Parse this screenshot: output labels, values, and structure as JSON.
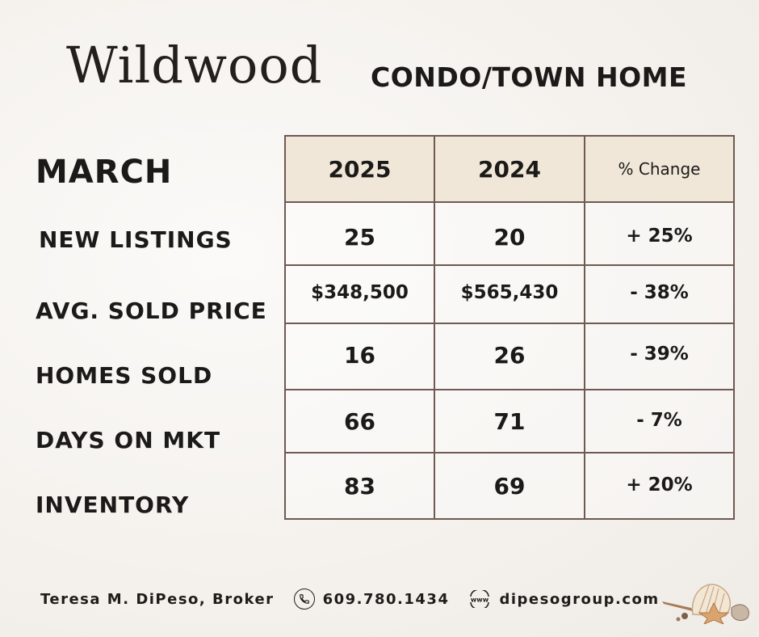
{
  "header": {
    "title": "Wildwood",
    "subtitle": "CONDO/TOWN HOME"
  },
  "month": "MARCH",
  "table": {
    "columns": [
      "2025",
      "2024",
      "% Change"
    ],
    "rows": [
      {
        "label": "NEW LISTINGS",
        "y2025": "25",
        "y2024": "20",
        "change": "+ 25%"
      },
      {
        "label": "AVG. SOLD PRICE",
        "y2025": "$348,500",
        "y2024": "$565,430",
        "change": "- 38%"
      },
      {
        "label": "HOMES SOLD",
        "y2025": "16",
        "y2024": "26",
        "change": "- 39%"
      },
      {
        "label": "DAYS ON MKT",
        "y2025": "66",
        "y2024": "71",
        "change": "- 7%"
      },
      {
        "label": "INVENTORY",
        "y2025": "83",
        "y2024": "69",
        "change": "+ 20%"
      }
    ]
  },
  "footer": {
    "agent": "Teresa M. DiPeso, Broker",
    "phone_icon": "phone-icon",
    "phone": "609.780.1434",
    "web_icon_text": "www",
    "website": "dipesogroup.com"
  },
  "colors": {
    "border": "#6e5a52",
    "header_fill": "#f0e7d8"
  }
}
